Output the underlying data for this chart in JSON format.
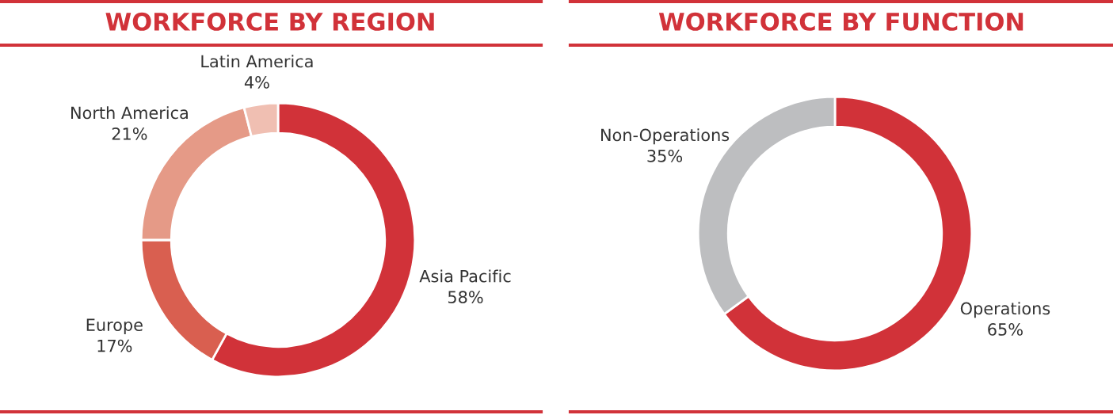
{
  "chart_data": [
    {
      "type": "donut",
      "title": "WORKFORCE BY REGION",
      "categories": [
        "Asia Pacific",
        "Europe",
        "North America",
        "Latin America"
      ],
      "values": [
        58,
        17,
        21,
        4
      ],
      "value_labels": [
        "58%",
        "17%",
        "21%",
        "4%"
      ],
      "colors": [
        "#d13239",
        "#d95f50",
        "#e59a87",
        "#f0bfb2"
      ]
    },
    {
      "type": "donut",
      "title": "WORKFORCE BY FUNCTION",
      "categories": [
        "Operations",
        "Non-Operations"
      ],
      "values": [
        65,
        35
      ],
      "value_labels": [
        "65%",
        "35%"
      ],
      "colors": [
        "#d13239",
        "#bdbec0"
      ]
    }
  ]
}
